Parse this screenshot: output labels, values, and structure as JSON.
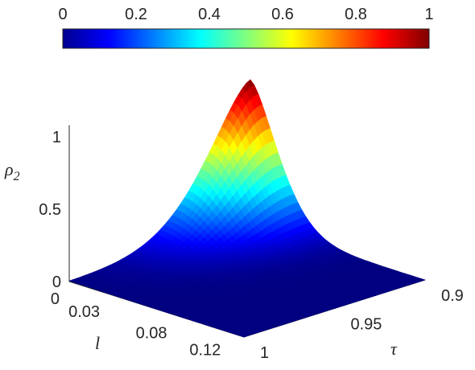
{
  "chart_data": {
    "type": "surface",
    "title": "",
    "zlabel": {
      "text": "ρ",
      "subscript": "2"
    },
    "xlabel": "l",
    "ylabel": "τ",
    "colorbar": {
      "colormap": "jet",
      "range": [
        0,
        1
      ],
      "ticks": [
        "0",
        "0.2",
        "0.4",
        "0.6",
        "0.8",
        "1"
      ],
      "location": "top"
    },
    "axes": {
      "l": {
        "range": [
          0,
          0.13
        ],
        "ticks": [
          0,
          0.03,
          0.08,
          0.12
        ],
        "tick_labels": [
          "0",
          "0.03",
          "0.08",
          "0.12"
        ]
      },
      "tau": {
        "range": [
          0.9,
          1.0
        ],
        "ticks": [
          0.9,
          0.95,
          1.0
        ],
        "tick_labels": [
          "0.9",
          "0.95",
          "1"
        ]
      },
      "rho2": {
        "range": [
          0,
          1
        ],
        "ticks": [
          0,
          0.5,
          1
        ],
        "tick_labels": [
          "0",
          "0.5",
          "1"
        ]
      }
    },
    "grid": true,
    "surface_samples": [
      {
        "l": 0.0,
        "tau": 0.9,
        "rho2": 1.0
      },
      {
        "l": 0.0,
        "tau": 0.92,
        "rho2": 0.55
      },
      {
        "l": 0.0,
        "tau": 0.95,
        "rho2": 0.12
      },
      {
        "l": 0.0,
        "tau": 1.0,
        "rho2": 0.0
      },
      {
        "l": 0.02,
        "tau": 0.9,
        "rho2": 0.55
      },
      {
        "l": 0.03,
        "tau": 0.9,
        "rho2": 0.32
      },
      {
        "l": 0.05,
        "tau": 0.9,
        "rho2": 0.15
      },
      {
        "l": 0.08,
        "tau": 0.9,
        "rho2": 0.06
      },
      {
        "l": 0.12,
        "tau": 0.9,
        "rho2": 0.02
      },
      {
        "l": 0.12,
        "tau": 1.0,
        "rho2": 0.0
      }
    ]
  }
}
